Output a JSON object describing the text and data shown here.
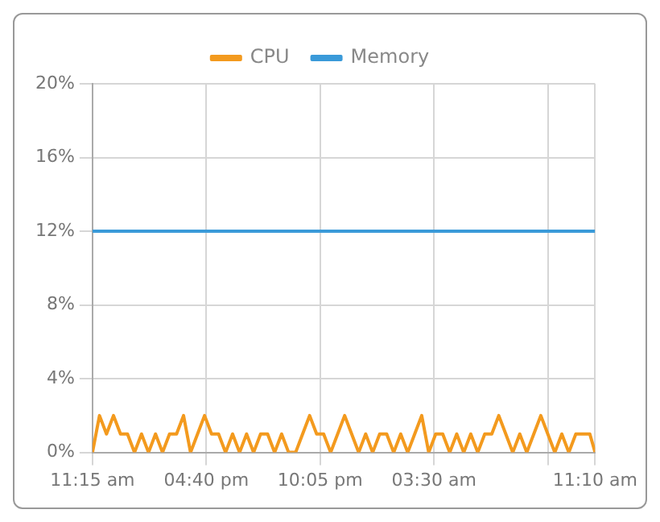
{
  "chart_data": {
    "type": "line",
    "legend": "top",
    "grid": true,
    "marker": "none",
    "line_style": "solid",
    "xlim": [
      "--01-01T11:15",
      "--01-02T11:10"
    ],
    "ylim": [
      0,
      20
    ],
    "yticks": [
      {
        "value": 0,
        "label": "0%"
      },
      {
        "value": 4,
        "label": "4%"
      },
      {
        "value": 8,
        "label": "8%"
      },
      {
        "value": 12,
        "label": "12%"
      },
      {
        "value": 16,
        "label": "16%"
      },
      {
        "value": 20,
        "label": "20%"
      }
    ],
    "xticks": [
      {
        "value": "--01-01T11:15",
        "label": "11:15 am"
      },
      {
        "value": "--01-01T16:40",
        "label": "04:40 pm"
      },
      {
        "value": "--01-01T22:05",
        "label": "10:05 pm"
      },
      {
        "value": "--01-02T03:30",
        "label": "03:30 am"
      },
      {
        "value": "--01-02T08:55",
        "label": null
      },
      {
        "value": "--01-02T11:10",
        "label": "11:10 am"
      }
    ],
    "series": [
      {
        "name": "CPU",
        "color": "#f39a1e",
        "x": [
          "--01-01T11:15",
          "--01-01T11:35",
          "--01-01T11:55",
          "--01-01T12:15",
          "--01-01T12:35",
          "--01-01T12:55",
          "--01-01T13:15",
          "--01-01T13:35",
          "--01-01T13:55",
          "--01-01T14:15",
          "--01-01T14:35",
          "--01-01T14:55",
          "--01-01T15:15",
          "--01-01T15:35",
          "--01-01T15:55",
          "--01-01T16:15",
          "--01-01T16:35",
          "--01-01T16:55",
          "--01-01T17:15",
          "--01-01T17:35",
          "--01-01T17:55",
          "--01-01T18:15",
          "--01-01T18:35",
          "--01-01T18:55",
          "--01-01T19:15",
          "--01-01T19:35",
          "--01-01T19:55",
          "--01-01T20:15",
          "--01-01T20:35",
          "--01-01T20:55",
          "--01-01T21:15",
          "--01-01T21:35",
          "--01-01T21:55",
          "--01-01T22:15",
          "--01-01T22:35",
          "--01-01T22:55",
          "--01-01T23:15",
          "--01-01T23:35",
          "--01-01T23:55",
          "--01-02T00:15",
          "--01-02T00:35",
          "--01-02T00:55",
          "--01-02T01:15",
          "--01-02T01:35",
          "--01-02T01:55",
          "--01-02T02:15",
          "--01-02T02:35",
          "--01-02T02:55",
          "--01-02T03:15",
          "--01-02T03:35",
          "--01-02T03:55",
          "--01-02T04:15",
          "--01-02T04:35",
          "--01-02T04:55",
          "--01-02T05:15",
          "--01-02T05:35",
          "--01-02T05:55",
          "--01-02T06:15",
          "--01-02T06:35",
          "--01-02T06:55",
          "--01-02T07:15",
          "--01-02T07:35",
          "--01-02T07:55",
          "--01-02T08:15",
          "--01-02T08:35",
          "--01-02T08:55",
          "--01-02T09:15",
          "--01-02T09:35",
          "--01-02T09:55",
          "--01-02T10:15",
          "--01-02T10:35",
          "--01-02T10:55",
          "--01-02T11:10"
        ],
        "values": [
          0,
          2,
          1,
          2,
          1,
          1,
          0,
          1,
          0,
          1,
          0,
          1,
          1,
          2,
          0,
          1,
          2,
          1,
          1,
          0,
          1,
          0,
          1,
          0,
          1,
          1,
          0,
          1,
          0,
          0,
          1,
          2,
          1,
          1,
          0,
          1,
          2,
          1,
          0,
          1,
          0,
          1,
          1,
          0,
          1,
          0,
          1,
          2,
          0,
          1,
          1,
          0,
          1,
          0,
          1,
          0,
          1,
          1,
          2,
          1,
          0,
          1,
          0,
          1,
          2,
          1,
          0,
          1,
          0,
          1,
          1,
          1,
          0
        ]
      },
      {
        "name": "Memory",
        "color": "#3a9ad9",
        "x": [
          "--01-01T11:15",
          "--01-02T11:10"
        ],
        "values": [
          12,
          12
        ]
      }
    ]
  }
}
